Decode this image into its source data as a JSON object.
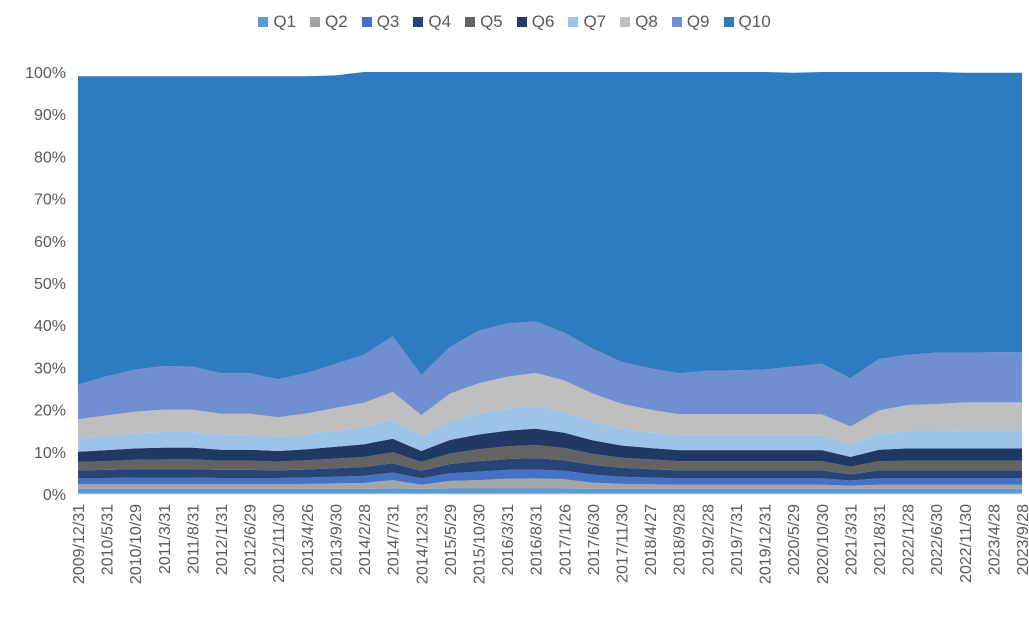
{
  "chart_data": {
    "type": "area",
    "stacked": "percent",
    "legend_position": "top",
    "grid": false,
    "ylim": [
      0,
      100
    ],
    "y_tick_labels": [
      "0%",
      "10%",
      "20%",
      "30%",
      "40%",
      "50%",
      "60%",
      "70%",
      "80%",
      "90%",
      "100%"
    ],
    "x_tick_labels": [
      "2009/12/31",
      "2010/5/31",
      "2010/10/29",
      "2011/3/31",
      "2011/8/31",
      "2012/1/31",
      "2012/6/29",
      "2012/11/30",
      "2013/4/26",
      "2013/9/30",
      "2014/2/28",
      "2014/7/31",
      "2014/12/31",
      "2015/5/29",
      "2015/10/30",
      "2016/3/31",
      "2016/8/31",
      "2017/1/26",
      "2017/6/30",
      "2017/11/30",
      "2018/4/27",
      "2018/9/28",
      "2019/2/28",
      "2019/7/31",
      "2019/12/31",
      "2020/5/29",
      "2020/10/30",
      "2021/3/31",
      "2021/8/31",
      "2022/1/28",
      "2022/6/30",
      "2022/11/30",
      "2023/4/28",
      "2023/9/28"
    ],
    "x": [
      "2009/12/31",
      "2010/5/31",
      "2010/10/29",
      "2011/3/31",
      "2011/8/31",
      "2012/1/31",
      "2012/6/29",
      "2012/11/30",
      "2013/4/26",
      "2013/9/30",
      "2014/2/28",
      "2014/7/31",
      "2014/12/31",
      "2015/5/29",
      "2015/10/30",
      "2016/3/31",
      "2016/8/31",
      "2017/1/26",
      "2017/6/30",
      "2017/11/30",
      "2018/4/27",
      "2018/9/28",
      "2019/2/28",
      "2019/7/31",
      "2019/12/31",
      "2020/5/29",
      "2020/10/30",
      "2021/3/31",
      "2021/8/31",
      "2022/1/28",
      "2022/6/30",
      "2022/11/30",
      "2023/4/28",
      "2023/9/28"
    ],
    "series": [
      {
        "name": "Q1",
        "color": "#5b9bd5",
        "values": [
          1.2,
          1.2,
          1.2,
          1.2,
          1.2,
          1.2,
          1.2,
          1.2,
          1.2,
          1.2,
          1.2,
          1.3,
          1.2,
          1.3,
          1.3,
          1.3,
          1.3,
          1.3,
          1.2,
          1.2,
          1.2,
          1.2,
          1.2,
          1.2,
          1.2,
          1.2,
          1.2,
          1.2,
          1.2,
          1.2,
          1.2,
          1.2,
          1.2,
          1.2
        ]
      },
      {
        "name": "Q2",
        "color": "#a5a5a5",
        "values": [
          1.1,
          1.1,
          1.1,
          1.1,
          1.1,
          1.1,
          1.1,
          1.1,
          1.2,
          1.3,
          1.4,
          2.0,
          1.0,
          1.8,
          2.0,
          2.3,
          2.4,
          2.2,
          1.5,
          1.2,
          1.1,
          1.0,
          1.0,
          1.0,
          1.0,
          1.0,
          1.0,
          0.8,
          1.0,
          1.0,
          1.0,
          1.0,
          1.0,
          1.0
        ]
      },
      {
        "name": "Q3",
        "color": "#4472c4",
        "values": [
          1.5,
          1.5,
          1.6,
          1.6,
          1.6,
          1.5,
          1.5,
          1.5,
          1.5,
          1.6,
          1.7,
          1.8,
          1.5,
          1.8,
          2.0,
          2.1,
          2.1,
          2.0,
          1.9,
          1.7,
          1.6,
          1.5,
          1.5,
          1.5,
          1.5,
          1.5,
          1.5,
          1.2,
          1.5,
          1.5,
          1.5,
          1.5,
          1.5,
          1.5
        ]
      },
      {
        "name": "Q4",
        "color": "#264478",
        "values": [
          1.8,
          1.9,
          2.0,
          2.0,
          2.0,
          1.9,
          1.9,
          1.8,
          1.9,
          2.0,
          2.1,
          2.2,
          1.8,
          2.2,
          2.5,
          2.6,
          2.7,
          2.5,
          2.3,
          2.1,
          2.0,
          1.9,
          1.9,
          1.9,
          1.9,
          1.9,
          1.9,
          1.5,
          1.9,
          1.9,
          1.9,
          1.9,
          1.9,
          1.9
        ]
      },
      {
        "name": "Q5",
        "color": "#636363",
        "values": [
          2.0,
          2.1,
          2.2,
          2.3,
          2.3,
          2.2,
          2.2,
          2.1,
          2.2,
          2.3,
          2.4,
          2.6,
          2.1,
          2.5,
          2.8,
          3.0,
          3.1,
          2.9,
          2.6,
          2.4,
          2.3,
          2.2,
          2.2,
          2.2,
          2.2,
          2.2,
          2.2,
          1.8,
          2.2,
          2.3,
          2.3,
          2.3,
          2.3,
          2.3
        ]
      },
      {
        "name": "Q6",
        "color": "#203864",
        "values": [
          2.4,
          2.6,
          2.7,
          2.8,
          2.8,
          2.6,
          2.6,
          2.5,
          2.6,
          2.8,
          3.0,
          3.2,
          2.6,
          3.2,
          3.5,
          3.7,
          3.9,
          3.6,
          3.2,
          2.9,
          2.7,
          2.6,
          2.6,
          2.6,
          2.6,
          2.6,
          2.6,
          2.3,
          2.7,
          2.9,
          2.9,
          2.9,
          2.9,
          2.9
        ]
      },
      {
        "name": "Q7",
        "color": "#9dc3e6",
        "values": [
          3.2,
          3.4,
          3.6,
          3.7,
          3.7,
          3.5,
          3.5,
          3.3,
          3.5,
          3.8,
          4.0,
          4.5,
          3.5,
          4.5,
          4.9,
          5.2,
          5.4,
          5.0,
          4.5,
          4.0,
          3.7,
          3.5,
          3.5,
          3.5,
          3.5,
          3.5,
          3.5,
          3.0,
          3.8,
          4.0,
          4.0,
          4.1,
          4.1,
          4.1
        ]
      },
      {
        "name": "Q8",
        "color": "#bfbfbf",
        "values": [
          4.5,
          4.8,
          5.1,
          5.3,
          5.3,
          5.0,
          5.0,
          4.7,
          5.0,
          5.4,
          5.8,
          6.6,
          5.0,
          6.5,
          7.2,
          7.6,
          7.8,
          7.4,
          6.6,
          5.9,
          5.4,
          5.0,
          5.0,
          5.0,
          5.0,
          5.0,
          5.0,
          4.2,
          5.5,
          6.3,
          6.5,
          6.8,
          6.8,
          6.8
        ]
      },
      {
        "name": "Q9",
        "color": "#6f8fd1",
        "values": [
          8.2,
          9.3,
          10.0,
          10.3,
          10.2,
          9.6,
          9.6,
          9.0,
          9.6,
          10.4,
          11.4,
          13.2,
          9.5,
          11.0,
          12.5,
          12.6,
          12.2,
          11.3,
          10.6,
          9.9,
          9.8,
          9.7,
          10.3,
          10.4,
          10.6,
          11.3,
          12.0,
          11.4,
          12.2,
          11.9,
          12.2,
          11.8,
          11.9,
          11.9
        ]
      },
      {
        "name": "Q10",
        "color": "#2e7bc0",
        "values": [
          73.1,
          71.1,
          69.5,
          68.7,
          68.8,
          70.4,
          70.4,
          71.8,
          70.3,
          68.4,
          67.0,
          62.6,
          71.8,
          65.2,
          62.3,
          60.6,
          60.1,
          62.8,
          65.6,
          68.7,
          70.2,
          71.4,
          70.8,
          70.7,
          70.5,
          69.6,
          69.1,
          72.6,
          68.0,
          67.0,
          66.5,
          66.3,
          66.2,
          66.2
        ]
      }
    ]
  }
}
